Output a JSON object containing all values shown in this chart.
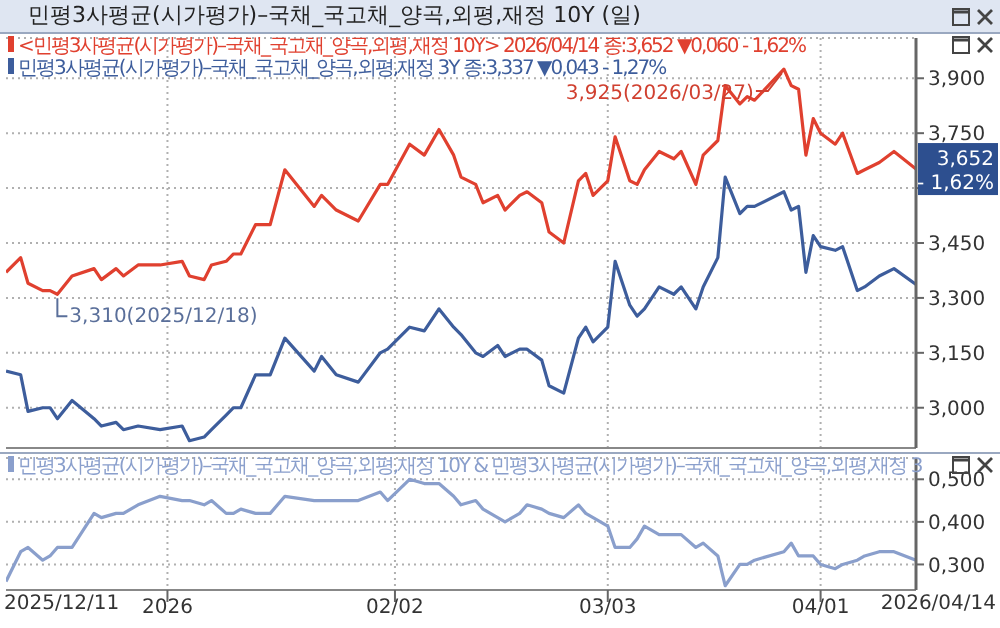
{
  "chart_data": [
    {
      "type": "line",
      "title": "민평3사평균(시가평가)–국채_국고채_양곡,외평,재정 10Y (일)",
      "x": [
        "2025-12-11",
        "2025-12-13",
        "2025-12-14",
        "2025-12-16",
        "2025-12-17",
        "2025-12-18",
        "2025-12-20",
        "2025-12-23",
        "2025-12-24",
        "2025-12-26",
        "2025-12-27",
        "2025-12-29",
        "2026-01-01",
        "2026-01-04",
        "2026-01-05",
        "2026-01-07",
        "2026-01-08",
        "2026-01-10",
        "2026-01-11",
        "2026-01-12",
        "2026-01-14",
        "2026-01-16",
        "2026-01-18",
        "2026-01-22",
        "2026-01-23",
        "2026-01-25",
        "2026-01-28",
        "2026-01-31",
        "2026-02-01",
        "2026-02-04",
        "2026-02-06",
        "2026-02-08",
        "2026-02-10",
        "2026-02-11",
        "2026-02-13",
        "2026-02-14",
        "2026-02-16",
        "2026-02-17",
        "2026-02-19",
        "2026-02-20",
        "2026-02-22",
        "2026-02-23",
        "2026-02-25",
        "2026-02-27",
        "2026-02-28",
        "2026-03-01",
        "2026-03-03",
        "2026-03-04",
        "2026-03-06",
        "2026-03-07",
        "2026-03-08",
        "2026-03-10",
        "2026-03-12",
        "2026-03-13",
        "2026-03-15",
        "2026-03-16",
        "2026-03-18",
        "2026-03-19",
        "2026-03-21",
        "2026-03-22",
        "2026-03-23",
        "2026-03-27",
        "2026-03-28",
        "2026-03-29",
        "2026-03-30",
        "2026-03-31",
        "2026-04-01",
        "2026-04-03",
        "2026-04-04",
        "2026-04-06",
        "2026-04-07",
        "2026-04-09",
        "2026-04-11",
        "2026-04-14"
      ],
      "xlim": [
        "2025-12-11",
        "2026-04-14"
      ],
      "xticks": [
        "2026-01-02",
        "2026-02-02",
        "2026-03-03",
        "2026-04-01"
      ],
      "ylim": [
        2.89,
        4.01
      ],
      "yticks": [
        {
          "value": 3.0,
          "label": "3,000"
        },
        {
          "value": 3.15,
          "label": "3,150"
        },
        {
          "value": 3.3,
          "label": "3,300"
        },
        {
          "value": 3.45,
          "label": "3,450"
        },
        {
          "value": 3.6,
          "label": null
        },
        {
          "value": 3.75,
          "label": "3,750"
        },
        {
          "value": 3.9,
          "label": "3,900"
        }
      ],
      "series": [
        {
          "name": "<민평3사평균(시가평가)–국채_국고채_양곡,외평,재정 10Y> 2026/04/14 종:3,652 ▼0,060 - 1,62%",
          "color": "#e0402f",
          "values": [
            3.37,
            3.41,
            3.34,
            3.32,
            3.32,
            3.31,
            3.36,
            3.38,
            3.35,
            3.38,
            3.36,
            3.39,
            3.39,
            3.4,
            3.36,
            3.35,
            3.39,
            3.4,
            3.42,
            3.42,
            3.5,
            3.5,
            3.65,
            3.55,
            3.58,
            3.54,
            3.51,
            3.61,
            3.61,
            3.72,
            3.69,
            3.76,
            3.69,
            3.63,
            3.61,
            3.56,
            3.58,
            3.54,
            3.58,
            3.59,
            3.56,
            3.48,
            3.45,
            3.62,
            3.64,
            3.58,
            3.62,
            3.74,
            3.62,
            3.61,
            3.65,
            3.7,
            3.68,
            3.7,
            3.61,
            3.69,
            3.73,
            3.88,
            3.83,
            3.85,
            3.84,
            3.925,
            3.88,
            3.87,
            3.69,
            3.79,
            3.75,
            3.72,
            3.75,
            3.64,
            3.65,
            3.67,
            3.7,
            3.652
          ]
        },
        {
          "name": "민평3사평균(시가평가)–국채_국고채_양곡,외평,재정 3Y 종:3,337 ▼0,043 - 1,27%",
          "color": "#3d5d9c",
          "values": [
            3.1,
            3.09,
            2.99,
            3.0,
            3.0,
            2.97,
            3.02,
            2.97,
            2.95,
            2.96,
            2.94,
            2.95,
            2.94,
            2.95,
            2.91,
            2.92,
            2.94,
            2.98,
            3.0,
            3.0,
            3.09,
            3.09,
            3.19,
            3.1,
            3.14,
            3.09,
            3.07,
            3.15,
            3.16,
            3.22,
            3.21,
            3.27,
            3.22,
            3.2,
            3.15,
            3.14,
            3.17,
            3.14,
            3.16,
            3.16,
            3.13,
            3.06,
            3.04,
            3.19,
            3.22,
            3.18,
            3.22,
            3.4,
            3.28,
            3.25,
            3.27,
            3.33,
            3.31,
            3.33,
            3.27,
            3.33,
            3.41,
            3.63,
            3.53,
            3.55,
            3.55,
            3.59,
            3.54,
            3.55,
            3.37,
            3.47,
            3.44,
            3.43,
            3.44,
            3.32,
            3.33,
            3.36,
            3.38,
            3.337
          ]
        }
      ],
      "annotations": [
        {
          "text": "3,310(2025/12/18)",
          "x": "2025-12-18",
          "y": 3.31
        },
        {
          "text": "3,925(2026/03/27)",
          "x": "2026-03-27",
          "y": 3.925
        },
        {
          "text": "3,652 - 1,62%",
          "x": "2026-04-14",
          "y": 3.652
        }
      ],
      "grid": true,
      "legend": "top left",
      "tick_labels": "y"
    },
    {
      "type": "line",
      "x": [
        "2025-12-11",
        "2025-12-13",
        "2025-12-14",
        "2025-12-16",
        "2025-12-17",
        "2025-12-18",
        "2025-12-20",
        "2025-12-23",
        "2025-12-24",
        "2025-12-26",
        "2025-12-27",
        "2025-12-29",
        "2026-01-01",
        "2026-01-04",
        "2026-01-05",
        "2026-01-07",
        "2026-01-08",
        "2026-01-10",
        "2026-01-11",
        "2026-01-12",
        "2026-01-14",
        "2026-01-16",
        "2026-01-18",
        "2026-01-22",
        "2026-01-23",
        "2026-01-25",
        "2026-01-28",
        "2026-01-31",
        "2026-02-01",
        "2026-02-04",
        "2026-02-06",
        "2026-02-08",
        "2026-02-10",
        "2026-02-11",
        "2026-02-13",
        "2026-02-14",
        "2026-02-16",
        "2026-02-17",
        "2026-02-19",
        "2026-02-20",
        "2026-02-22",
        "2026-02-23",
        "2026-02-25",
        "2026-02-27",
        "2026-02-28",
        "2026-03-01",
        "2026-03-03",
        "2026-03-04",
        "2026-03-06",
        "2026-03-07",
        "2026-03-08",
        "2026-03-10",
        "2026-03-12",
        "2026-03-13",
        "2026-03-15",
        "2026-03-16",
        "2026-03-18",
        "2026-03-19",
        "2026-03-21",
        "2026-03-22",
        "2026-03-23",
        "2026-03-27",
        "2026-03-28",
        "2026-03-29",
        "2026-03-30",
        "2026-03-31",
        "2026-04-01",
        "2026-04-03",
        "2026-04-04",
        "2026-04-06",
        "2026-04-07",
        "2026-04-09",
        "2026-04-11",
        "2026-04-14"
      ],
      "xlim": [
        "2025-12-11",
        "2026-04-14"
      ],
      "xticks": [
        {
          "value": "2026-01-02",
          "label": "2026"
        },
        {
          "value": "2026-02-02",
          "label": "02/02"
        },
        {
          "value": "2026-03-03",
          "label": "03/03"
        },
        {
          "value": "2026-04-01",
          "label": "04/01"
        }
      ],
      "annotations": [
        "2025/12/11",
        "2026/04/14"
      ],
      "ylim": [
        0.24,
        0.55
      ],
      "yticks": [
        {
          "value": 0.3,
          "label": "0,300"
        },
        {
          "value": 0.4,
          "label": "0,400"
        },
        {
          "value": 0.5,
          "label": "0,500"
        }
      ],
      "series": [
        {
          "name": "민평3사평균(시가평가)–국채_국고채_양곡,외평,재정 10Y & 민평3사평균(시가평가)–국채_국고채_양곡,외평,재정 3",
          "color": "#8a9fcc",
          "values": [
            0.26,
            0.33,
            0.34,
            0.31,
            0.32,
            0.34,
            0.34,
            0.42,
            0.41,
            0.42,
            0.42,
            0.44,
            0.46,
            0.45,
            0.45,
            0.44,
            0.45,
            0.42,
            0.42,
            0.43,
            0.42,
            0.42,
            0.46,
            0.45,
            0.45,
            0.45,
            0.45,
            0.47,
            0.45,
            0.5,
            0.49,
            0.49,
            0.46,
            0.44,
            0.45,
            0.43,
            0.41,
            0.4,
            0.42,
            0.44,
            0.43,
            0.42,
            0.41,
            0.44,
            0.42,
            0.41,
            0.39,
            0.34,
            0.34,
            0.36,
            0.39,
            0.37,
            0.37,
            0.37,
            0.34,
            0.35,
            0.32,
            0.25,
            0.3,
            0.3,
            0.31,
            0.33,
            0.35,
            0.32,
            0.32,
            0.32,
            0.3,
            0.29,
            0.3,
            0.31,
            0.32,
            0.33,
            0.33,
            0.31
          ]
        }
      ],
      "grid": true,
      "legend": "top left"
    }
  ]
}
